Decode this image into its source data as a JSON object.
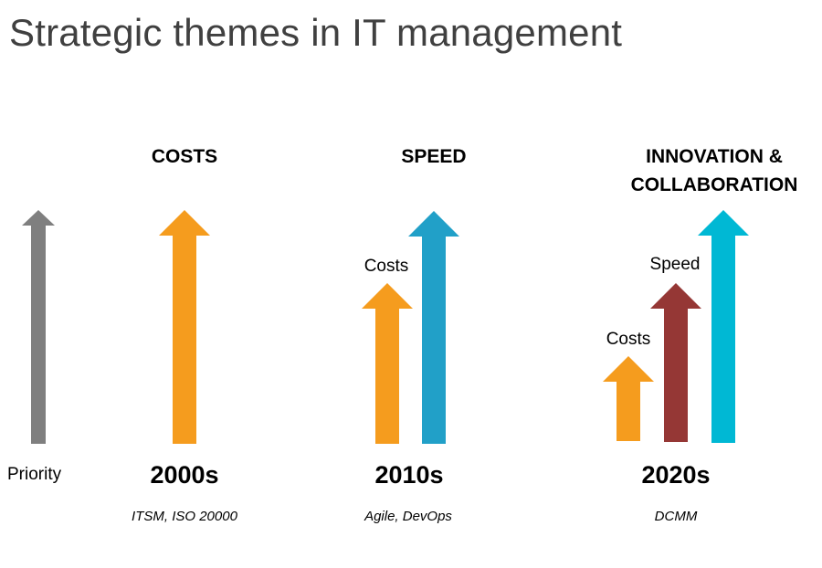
{
  "title": "Strategic themes in IT management",
  "axis": {
    "label": "Priority",
    "arrow_color": "#7f7f7f"
  },
  "periods": [
    {
      "decade": "2000s",
      "heading": "COSTS",
      "frameworks": "ITSM, ISO 20000",
      "arrows": [
        {
          "name": "Costs",
          "level": 1.0,
          "color": "#f59c1e"
        }
      ]
    },
    {
      "decade": "2010s",
      "heading": "SPEED",
      "frameworks": "Agile, DevOps",
      "arrows": [
        {
          "name": "Costs",
          "level": 0.7,
          "color": "#f59c1e",
          "label": "Costs"
        },
        {
          "name": "Speed",
          "level": 1.0,
          "color": "#21a0c8"
        }
      ]
    },
    {
      "decade": "2020s",
      "heading_line1": "INNOVATION &",
      "heading_line2": "COLLABORATION",
      "frameworks": "DCMM",
      "arrows": [
        {
          "name": "Costs",
          "level": 0.37,
          "color": "#f59c1e",
          "label": "Costs"
        },
        {
          "name": "Speed",
          "level": 0.69,
          "color": "#953735",
          "label": "Speed"
        },
        {
          "name": "Innovation & Collaboration",
          "level": 1.0,
          "color": "#00b8d4"
        }
      ]
    }
  ]
}
